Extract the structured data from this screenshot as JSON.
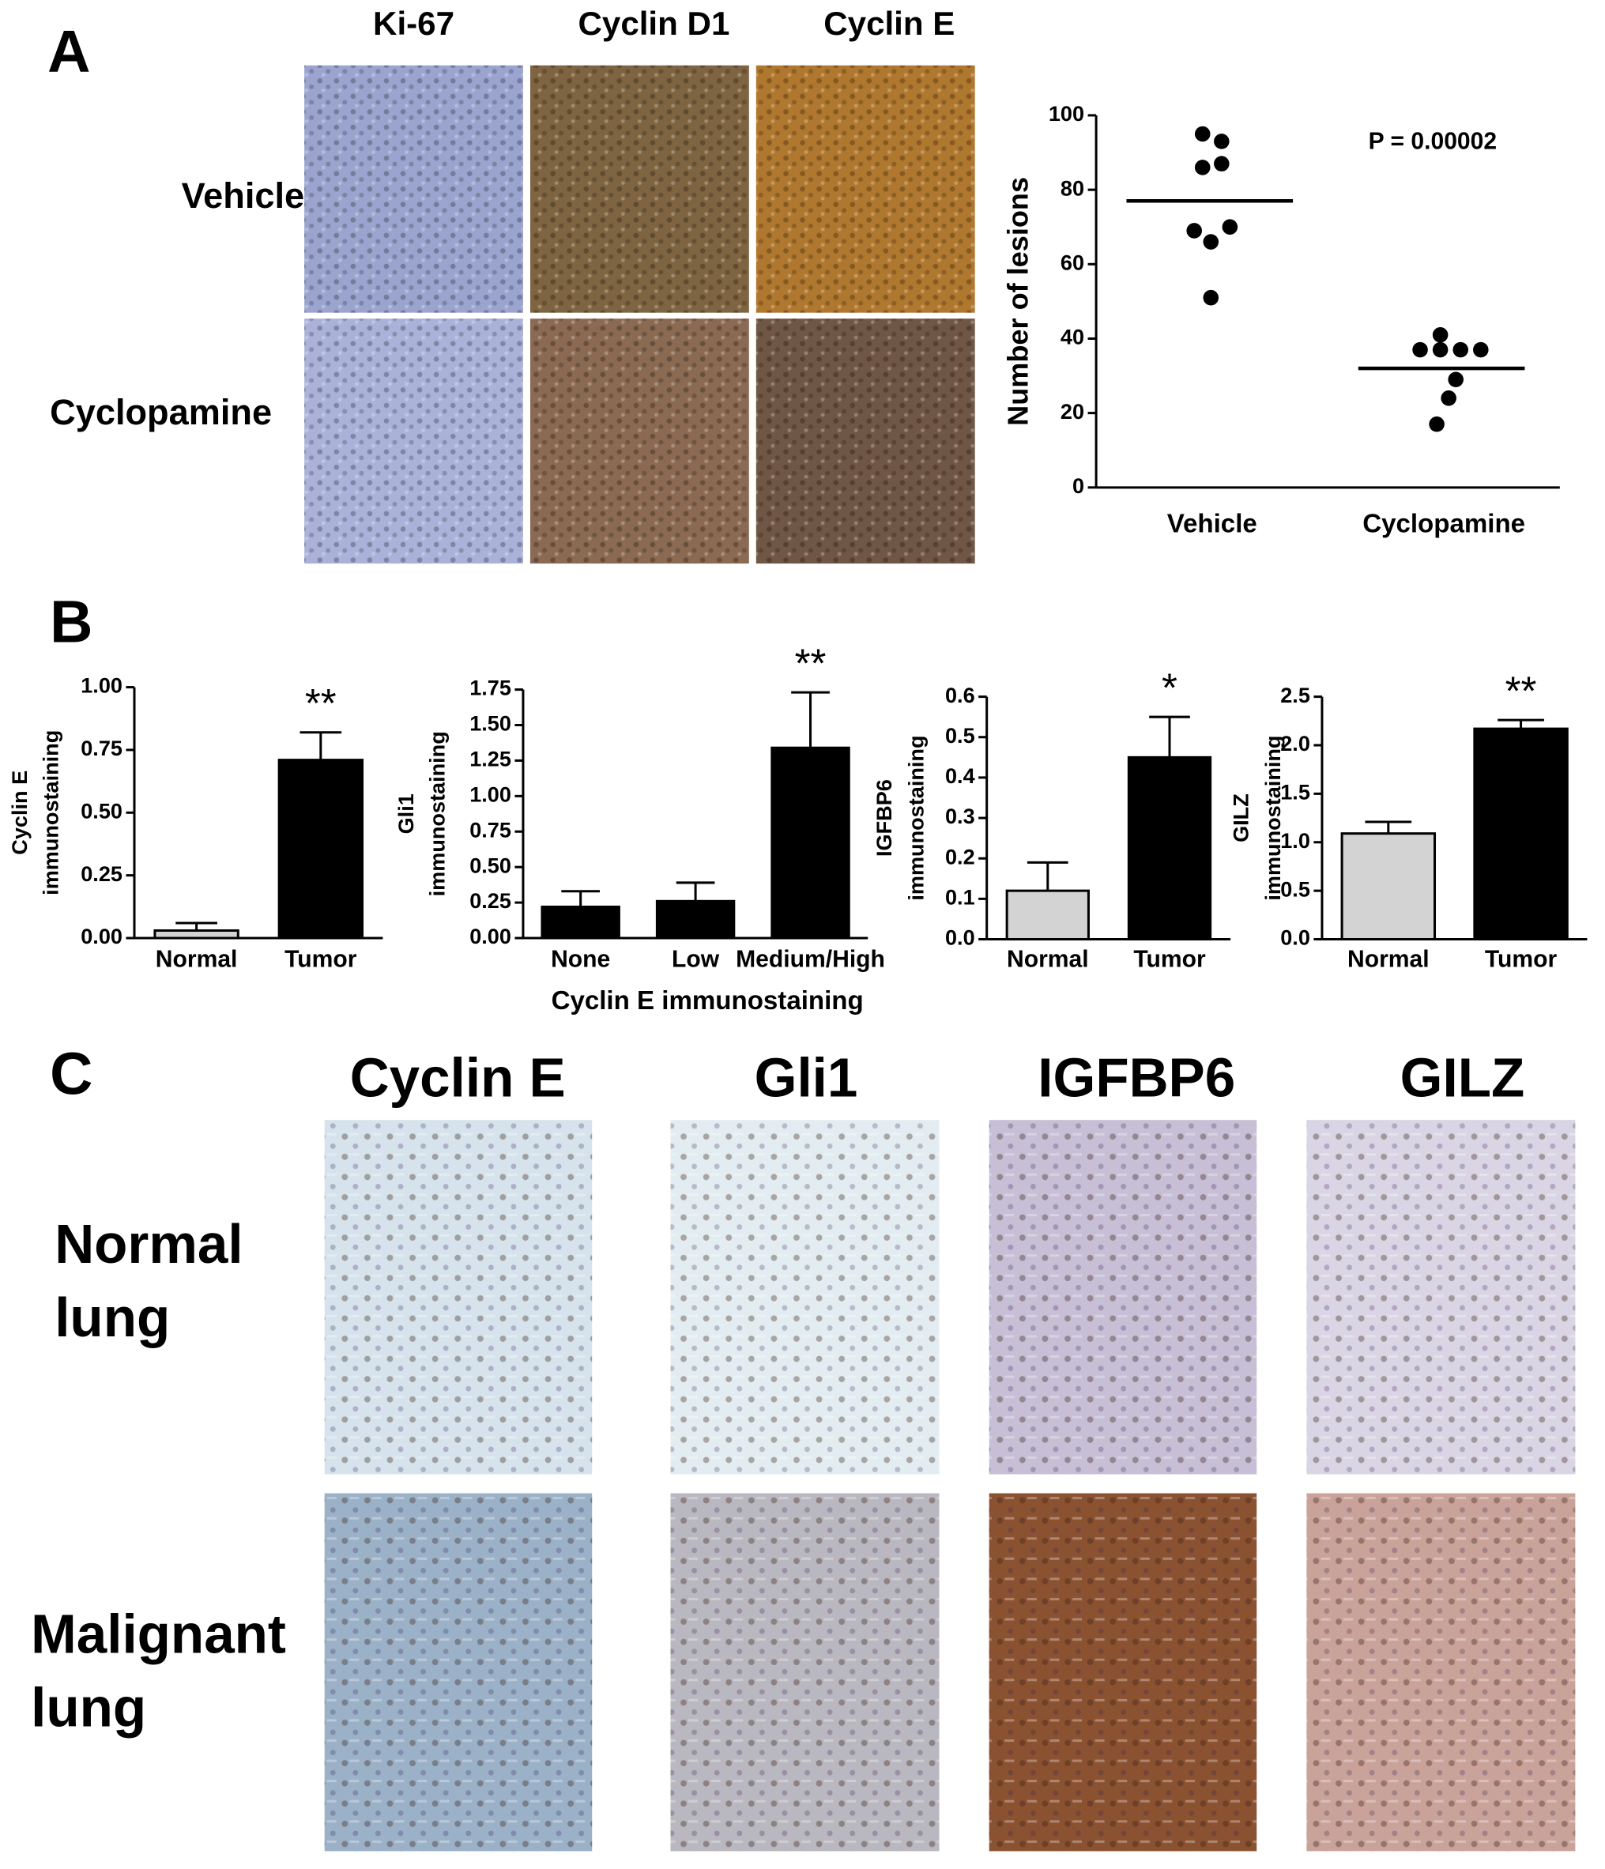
{
  "panels": {
    "A": {
      "letter": "A",
      "columns": [
        "Ki-67",
        "Cyclin D1",
        "Cyclin E"
      ],
      "rows": [
        "Vehicle",
        "Cyclopamine"
      ]
    },
    "B": {
      "letter": "B"
    },
    "C": {
      "letter": "C",
      "columns": [
        "Cyclin E",
        "Gli1",
        "IGFBP6",
        "GILZ"
      ],
      "rows": [
        [
          "Normal",
          "lung"
        ],
        [
          "Malignant",
          "lung"
        ]
      ]
    }
  },
  "chart_data": [
    {
      "type": "scatter",
      "ylabel": "Number of lesions",
      "annotation": "P = 0.00002",
      "categories": [
        "Vehicle",
        "Cyclopamine"
      ],
      "points": [
        [
          95,
          93,
          87,
          86,
          70,
          69,
          66,
          51
        ],
        [
          41,
          37,
          37,
          37,
          37,
          29,
          24,
          17
        ]
      ],
      "means": [
        77,
        32
      ],
      "color": "#000000",
      "ylim": [
        0,
        100
      ],
      "yticks": [
        0,
        20,
        40,
        60,
        80,
        100
      ]
    },
    {
      "type": "bar",
      "ylabel": [
        "Cyclin E",
        "immunostaining"
      ],
      "annotation": "**",
      "categories": [
        "Normal",
        "Tumor"
      ],
      "values": [
        0.03,
        0.71
      ],
      "errors": [
        0.03,
        0.11
      ],
      "colors": [
        "#d3d3d3",
        "#000000"
      ],
      "ylim": [
        0,
        1
      ],
      "yticks": [
        {
          "value": 0,
          "label": "0.00"
        },
        0.25,
        {
          "value": 0.5,
          "label": "0.50"
        },
        0.75,
        {
          "value": 1,
          "label": "1.00"
        }
      ]
    },
    {
      "type": "bar",
      "ylabel": [
        "Gli1",
        "immunostaining"
      ],
      "xlabel": "Cyclin E immunostaining",
      "annotation": "**",
      "categories": [
        "None",
        "Low",
        "Medium/High"
      ],
      "values": [
        0.22,
        0.26,
        1.34
      ],
      "errors": [
        0.11,
        0.13,
        0.39
      ],
      "colors": [
        "#000000",
        "#000000",
        "#000000"
      ],
      "ylim": [
        0,
        1.75
      ],
      "yticks": [
        {
          "value": 0,
          "label": "0.00"
        },
        0.25,
        {
          "value": 0.5,
          "label": "0.50"
        },
        0.75,
        {
          "value": 1,
          "label": "1.00"
        },
        1.25,
        {
          "value": 1.5,
          "label": "1.50"
        },
        1.75
      ]
    },
    {
      "type": "bar",
      "ylabel": [
        "IGFBP6",
        "immunostaining"
      ],
      "annotation": "*",
      "categories": [
        "Normal",
        "Tumor"
      ],
      "values": [
        0.12,
        0.45
      ],
      "errors": [
        0.07,
        0.1
      ],
      "colors": [
        "#d3d3d3",
        "#000000"
      ],
      "ylim": [
        0,
        0.6
      ],
      "yticks": [
        {
          "value": 0,
          "label": "0.0"
        },
        0.1,
        0.2,
        0.3,
        0.4,
        0.5,
        0.6
      ]
    },
    {
      "type": "bar",
      "ylabel": [
        "GILZ",
        "immunostaining"
      ],
      "annotation": "**",
      "categories": [
        "Normal",
        "Tumor"
      ],
      "values": [
        1.09,
        2.17
      ],
      "errors": [
        0.12,
        0.09
      ],
      "colors": [
        "#d3d3d3",
        "#000000"
      ],
      "ylim": [
        0,
        2.5
      ],
      "yticks": [
        {
          "value": 0,
          "label": "0.0"
        },
        0.5,
        {
          "value": 1,
          "label": "1.0"
        },
        1.5,
        {
          "value": 2,
          "label": "2.0"
        },
        2.5
      ]
    }
  ]
}
